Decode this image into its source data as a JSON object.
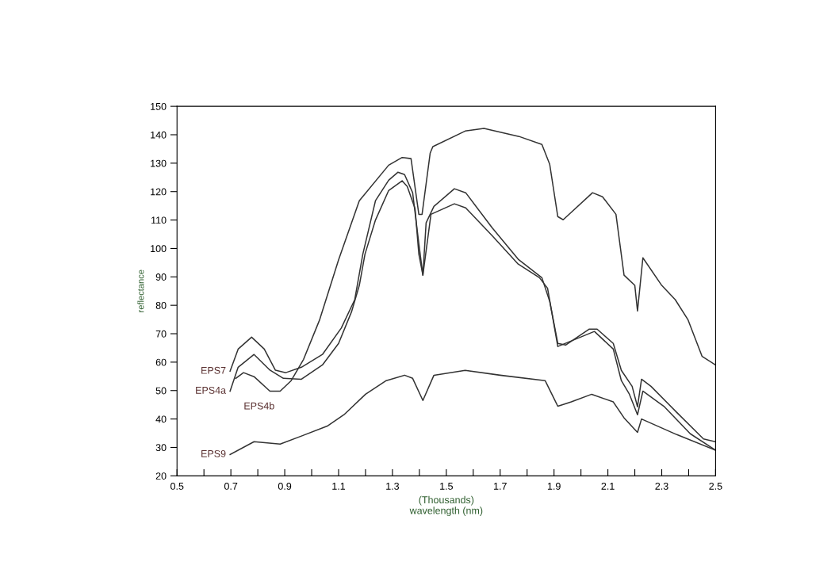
{
  "chart_data": {
    "type": "line",
    "xlabel": "(Thousands)\nwavelength (nm)",
    "ylabel": "reflectance",
    "xlim": [
      0.5,
      2.5
    ],
    "ylim": [
      20,
      150
    ],
    "xticks": [
      0.5,
      {
        "value": 0.6,
        "label": null
      },
      0.7,
      {
        "value": 0.8,
        "label": null
      },
      0.9,
      {
        "value": 1.0,
        "label": null
      },
      1.1,
      {
        "value": 1.2,
        "label": null
      },
      1.3,
      {
        "value": 1.4,
        "label": null
      },
      1.5,
      {
        "value": 1.6,
        "label": null
      },
      1.7,
      {
        "value": 1.8,
        "label": null
      },
      1.9,
      {
        "value": 2.0,
        "label": null
      },
      2.1,
      {
        "value": 2.2,
        "label": null
      },
      2.3,
      {
        "value": 2.4,
        "label": null
      },
      2.5
    ],
    "yticks": [
      20,
      30,
      40,
      50,
      60,
      70,
      80,
      90,
      100,
      110,
      120,
      130,
      140,
      150
    ],
    "grid": false,
    "legend": false,
    "marker": "none",
    "line_style": "solid",
    "series": [
      {
        "name": "EPS7",
        "color": "#333333",
        "x": [
          0.697,
          0.727,
          0.777,
          0.824,
          0.865,
          0.904,
          0.962,
          1.04,
          1.11,
          1.16,
          1.19,
          1.237,
          1.286,
          1.32,
          1.345,
          1.375,
          1.398,
          1.413,
          1.425,
          1.454,
          1.53,
          1.572,
          1.67,
          1.767,
          1.855,
          1.884,
          1.914,
          1.943,
          2.03,
          2.06,
          2.12,
          2.15,
          2.19,
          2.21,
          2.225,
          2.26,
          2.356,
          2.455,
          2.5
        ],
        "values": [
          56.8,
          64.6,
          68.8,
          64.6,
          57.2,
          56.3,
          58.2,
          62.7,
          72,
          82,
          98,
          116.8,
          124,
          126.8,
          126,
          119.6,
          101.7,
          90.6,
          109,
          114.8,
          121,
          119.6,
          107.3,
          96.2,
          89.7,
          81.4,
          66.6,
          66,
          71.6,
          71.6,
          66.6,
          57.1,
          51.5,
          44.3,
          54,
          51.5,
          42.3,
          33,
          32
        ]
      },
      {
        "name": "EPS4a",
        "color": "#333333",
        "x": [
          0.697,
          0.727,
          0.786,
          0.845,
          0.895,
          0.962,
          1.04,
          1.1,
          1.148,
          1.177,
          1.198,
          1.237,
          1.286,
          1.336,
          1.355,
          1.384,
          1.398,
          1.413,
          1.443,
          1.53,
          1.572,
          1.67,
          1.767,
          1.846,
          1.876,
          1.914,
          2.05,
          2.12,
          2.15,
          2.18,
          2.21,
          2.23,
          2.31,
          2.406,
          2.5
        ],
        "values": [
          49.8,
          58.2,
          62.7,
          57.2,
          54.3,
          54,
          59,
          66.6,
          77.7,
          87,
          98,
          110,
          120.4,
          123.8,
          121.8,
          114,
          98,
          90.6,
          112,
          115.7,
          114.3,
          104.5,
          94.5,
          89.7,
          86,
          65.5,
          70.8,
          64.6,
          53.5,
          48.7,
          41.5,
          49.8,
          44.3,
          34.8,
          29
        ]
      },
      {
        "name": "EPS4b",
        "color": "#333333",
        "x": [
          0.718,
          0.747,
          0.786,
          0.845,
          0.883,
          0.924,
          0.97,
          1.03,
          1.07,
          1.1,
          1.177,
          1.286,
          1.336,
          1.369,
          1.398,
          1.41,
          1.44,
          1.45,
          1.57,
          1.64,
          1.77,
          1.855,
          1.884,
          1.914,
          1.934,
          2.043,
          2.08,
          2.13,
          2.16,
          2.2,
          2.21,
          2.23,
          2.3,
          2.35,
          2.397,
          2.45,
          2.5
        ],
        "values": [
          54.3,
          56.3,
          54.9,
          49.8,
          49.8,
          53.5,
          61,
          75,
          87,
          96,
          116.8,
          129.3,
          132,
          131.6,
          112,
          112,
          133.5,
          135.8,
          141.3,
          142.2,
          139.4,
          136.6,
          129.6,
          111.2,
          110.1,
          119.6,
          118.2,
          112,
          90.6,
          87,
          78,
          96.7,
          87,
          82,
          75,
          62,
          59
        ]
      },
      {
        "name": "EPS9",
        "color": "#333333",
        "x": [
          0.697,
          0.786,
          0.883,
          0.962,
          1.06,
          1.12,
          1.2,
          1.277,
          1.345,
          1.375,
          1.413,
          1.454,
          1.57,
          1.7,
          1.867,
          1.914,
          1.964,
          2.04,
          2.12,
          2.16,
          2.21,
          2.225,
          2.356,
          2.5
        ],
        "values": [
          27.5,
          32,
          31.2,
          34,
          37.6,
          41.5,
          48.7,
          53.5,
          55.4,
          54.3,
          46.5,
          55.4,
          57.1,
          55.4,
          53.5,
          44.5,
          46,
          48.7,
          46,
          40.4,
          35.3,
          40,
          34.5,
          29
        ]
      }
    ]
  }
}
